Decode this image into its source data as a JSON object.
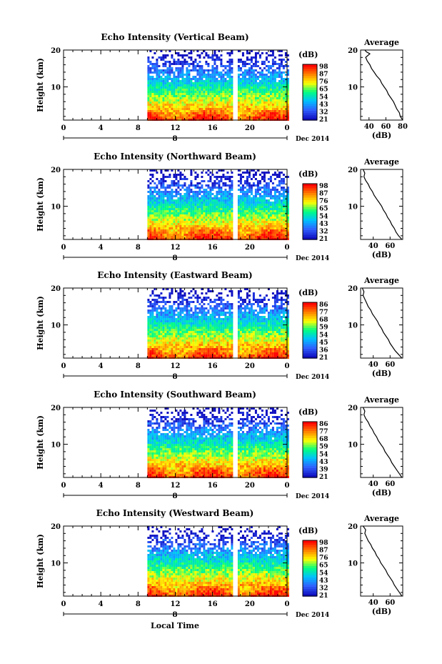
{
  "figure": {
    "xlabel": "Local Time",
    "date_label": "Dec 2014",
    "day_label": "8"
  },
  "chart_data": [
    {
      "type": "heatmap",
      "title": "Echo Intensity (Vertical Beam)",
      "ylabel": "Height (km)",
      "x_ticks": [
        "0",
        "4",
        "8",
        "12",
        "16",
        "20",
        "0"
      ],
      "xlim": [
        0,
        24
      ],
      "y_ticks": [
        "20",
        "10"
      ],
      "ylim": [
        1,
        20
      ],
      "data_coverage_hours": [
        [
          9,
          18
        ],
        [
          18.7,
          24
        ]
      ],
      "colorbar": {
        "unit": "(dB)",
        "ticks": [
          "98",
          "87",
          "76",
          "65",
          "54",
          "43",
          "32",
          "21"
        ],
        "colors": [
          "#ff0000",
          "#ff8000",
          "#ffff00",
          "#00ff80",
          "#00c0ff",
          "#3060ff",
          "#1010c0"
        ]
      },
      "average_profile": {
        "title": "Average",
        "xlabel": "(dB)",
        "x_ticks": [
          "40",
          "60",
          "80"
        ],
        "xlim": [
          30,
          80
        ],
        "y_ticks": [
          "20",
          "10"
        ],
        "ylim": [
          1,
          20
        ],
        "x": [
          80,
          77,
          76,
          73,
          71,
          69,
          66,
          63,
          61,
          58,
          55,
          53,
          49,
          46,
          43,
          41,
          38,
          36,
          41,
          37,
          35
        ],
        "y": [
          1,
          2,
          3,
          4,
          5,
          6,
          7,
          8,
          9,
          10,
          11,
          12,
          13,
          14,
          15,
          16,
          17,
          18,
          19,
          19.5,
          20
        ]
      }
    },
    {
      "type": "heatmap",
      "title": "Echo Intensity (Northward Beam)",
      "ylabel": "Height (km)",
      "x_ticks": [
        "0",
        "4",
        "8",
        "12",
        "16",
        "20",
        "0"
      ],
      "xlim": [
        0,
        24
      ],
      "y_ticks": [
        "20",
        "10"
      ],
      "ylim": [
        1,
        20
      ],
      "data_coverage_hours": [
        [
          9,
          18
        ],
        [
          18.7,
          24
        ]
      ],
      "colorbar": {
        "unit": "(dB)",
        "ticks": [
          "98",
          "87",
          "76",
          "65",
          "54",
          "43",
          "32",
          "21"
        ],
        "colors": [
          "#ff0000",
          "#ff8000",
          "#ffff00",
          "#00ff80",
          "#00c0ff",
          "#3060ff",
          "#1010c0"
        ]
      },
      "average_profile": {
        "title": "Average",
        "xlabel": "(dB)",
        "x_ticks": [
          "40",
          "60"
        ],
        "xlim": [
          25,
          75
        ],
        "y_ticks": [
          "20",
          "10"
        ],
        "ylim": [
          1,
          20
        ],
        "x": [
          74,
          70,
          67,
          65,
          62,
          60,
          57,
          55,
          52,
          50,
          47,
          44,
          41,
          39,
          36,
          34,
          31,
          29,
          30,
          28
        ],
        "y": [
          1,
          2,
          3,
          4,
          5,
          6,
          7,
          8,
          9,
          10,
          11,
          12,
          13,
          14,
          15,
          16,
          17,
          18,
          19,
          20
        ]
      }
    },
    {
      "type": "heatmap",
      "title": "Echo Intensity (Eastward Beam)",
      "ylabel": "Height (km)",
      "x_ticks": [
        "0",
        "4",
        "8",
        "12",
        "16",
        "20",
        "0"
      ],
      "xlim": [
        0,
        24
      ],
      "y_ticks": [
        "20",
        "10"
      ],
      "ylim": [
        1,
        20
      ],
      "data_coverage_hours": [
        [
          9,
          18
        ],
        [
          18.7,
          24
        ]
      ],
      "colorbar": {
        "unit": "(dB)",
        "ticks": [
          "86",
          "77",
          "68",
          "59",
          "54",
          "45",
          "36",
          "21"
        ],
        "colors": [
          "#ff0000",
          "#ff8000",
          "#ffff00",
          "#00ff80",
          "#00c0ff",
          "#3060ff",
          "#1010c0"
        ]
      },
      "average_profile": {
        "title": "Average",
        "xlabel": "(dB)",
        "x_ticks": [
          "40",
          "60"
        ],
        "xlim": [
          25,
          75
        ],
        "y_ticks": [
          "20",
          "10"
        ],
        "ylim": [
          1,
          20
        ],
        "x": [
          74,
          70,
          66,
          63,
          60,
          58,
          55,
          52,
          50,
          47,
          45,
          42,
          39,
          37,
          34,
          32,
          30,
          28,
          29,
          27
        ],
        "y": [
          1,
          2,
          3,
          4,
          5,
          6,
          7,
          8,
          9,
          10,
          11,
          12,
          13,
          14,
          15,
          16,
          17,
          18,
          19,
          20
        ]
      }
    },
    {
      "type": "heatmap",
      "title": "Echo Intensity (Southward Beam)",
      "ylabel": "Height (km)",
      "x_ticks": [
        "0",
        "4",
        "8",
        "12",
        "16",
        "20",
        "0"
      ],
      "xlim": [
        0,
        24
      ],
      "y_ticks": [
        "20",
        "10"
      ],
      "ylim": [
        1,
        20
      ],
      "data_coverage_hours": [
        [
          9,
          18
        ],
        [
          18.7,
          24
        ]
      ],
      "colorbar": {
        "unit": "(dB)",
        "ticks": [
          "86",
          "77",
          "68",
          "59",
          "54",
          "43",
          "39",
          "21"
        ],
        "colors": [
          "#ff0000",
          "#ff8000",
          "#ffff00",
          "#00ff80",
          "#00c0ff",
          "#3060ff",
          "#1010c0"
        ]
      },
      "average_profile": {
        "title": "Average",
        "xlabel": "(dB)",
        "x_ticks": [
          "40",
          "60"
        ],
        "xlim": [
          25,
          75
        ],
        "y_ticks": [
          "20",
          "10"
        ],
        "ylim": [
          1,
          20
        ],
        "x": [
          74,
          71,
          68,
          65,
          62,
          60,
          57,
          54,
          52,
          49,
          46,
          44,
          41,
          39,
          36,
          34,
          31,
          29,
          30,
          28
        ],
        "y": [
          1,
          2,
          3,
          4,
          5,
          6,
          7,
          8,
          9,
          10,
          11,
          12,
          13,
          14,
          15,
          16,
          17,
          18,
          19,
          20
        ]
      }
    },
    {
      "type": "heatmap",
      "title": "Echo Intensity (Westward Beam)",
      "ylabel": "Height (km)",
      "x_ticks": [
        "0",
        "4",
        "8",
        "12",
        "16",
        "20",
        "0"
      ],
      "xlim": [
        0,
        24
      ],
      "y_ticks": [
        "20",
        "10"
      ],
      "ylim": [
        1,
        20
      ],
      "data_coverage_hours": [
        [
          9,
          18
        ],
        [
          18.7,
          24
        ]
      ],
      "colorbar": {
        "unit": "(dB)",
        "ticks": [
          "98",
          "87",
          "76",
          "65",
          "54",
          "43",
          "32",
          "21"
        ],
        "colors": [
          "#ff0000",
          "#ff8000",
          "#ffff00",
          "#00ff80",
          "#00c0ff",
          "#3060ff",
          "#1010c0"
        ]
      },
      "average_profile": {
        "title": "Average",
        "xlabel": "(dB)",
        "x_ticks": [
          "40",
          "60"
        ],
        "xlim": [
          25,
          75
        ],
        "y_ticks": [
          "20",
          "10"
        ],
        "ylim": [
          1,
          20
        ],
        "x": [
          74,
          71,
          68,
          65,
          63,
          60,
          57,
          55,
          52,
          49,
          47,
          44,
          42,
          39,
          37,
          34,
          32,
          30,
          31,
          28
        ],
        "y": [
          1,
          2,
          3,
          4,
          5,
          6,
          7,
          8,
          9,
          10,
          11,
          12,
          13,
          14,
          15,
          16,
          17,
          18,
          19,
          20
        ]
      }
    }
  ]
}
